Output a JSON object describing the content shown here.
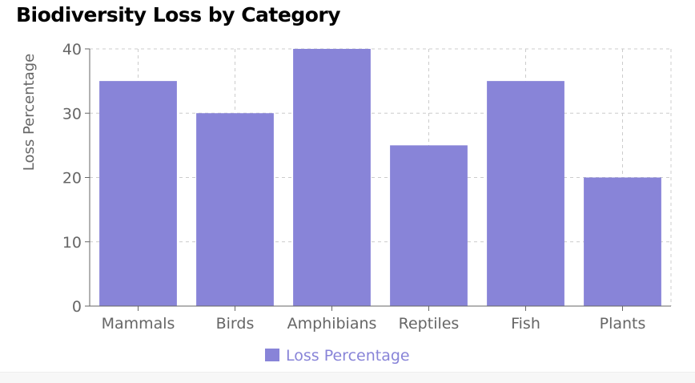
{
  "chart_data": {
    "type": "bar",
    "title": "Biodiversity Loss by Category",
    "xlabel": "",
    "ylabel": "Loss Percentage",
    "categories": [
      "Mammals",
      "Birds",
      "Amphibians",
      "Reptiles",
      "Fish",
      "Plants"
    ],
    "series": [
      {
        "name": "Loss Percentage",
        "values": [
          35,
          30,
          40,
          25,
          35,
          20
        ]
      }
    ],
    "ylim": [
      0,
      40
    ],
    "yticks": [
      "0",
      "10",
      "20",
      "30",
      "40"
    ],
    "grid": true,
    "legend_position": "bottom",
    "colors": {
      "bar": "#8884d8",
      "legend_text": "#8884d8",
      "axis": "#666666",
      "grid": "#cccccc"
    }
  }
}
